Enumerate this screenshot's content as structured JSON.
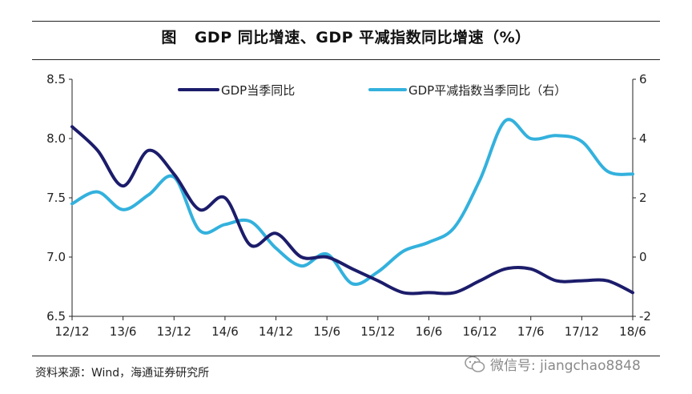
{
  "title": {
    "fig_label": "图",
    "text": "GDP 同比增速、GDP 平减指数同比增速（%）"
  },
  "source": "资料来源：Wind，海通证券研究所",
  "watermark": "微信号: jiangchao8848",
  "colors": {
    "gdp": "#1c1c6b",
    "deflator": "#33b1dd",
    "axis": "#222222"
  },
  "chart_data": {
    "type": "line",
    "x": [
      "12/12",
      "13/3",
      "13/6",
      "13/9",
      "13/12",
      "14/3",
      "14/6",
      "14/9",
      "14/12",
      "15/3",
      "15/6",
      "15/9",
      "15/12",
      "16/3",
      "16/6",
      "16/9",
      "16/12",
      "17/3",
      "17/6",
      "17/9",
      "17/12",
      "18/3",
      "18/6"
    ],
    "x_ticks": [
      "12/12",
      "13/6",
      "13/12",
      "14/6",
      "14/12",
      "15/6",
      "15/12",
      "16/6",
      "16/12",
      "17/6",
      "17/12",
      "18/6"
    ],
    "series": [
      {
        "name": "GDP当季同比",
        "axis": "left",
        "values": [
          8.1,
          7.9,
          7.6,
          7.9,
          7.7,
          7.4,
          7.5,
          7.1,
          7.2,
          7.0,
          7.0,
          6.9,
          6.8,
          6.7,
          6.7,
          6.7,
          6.8,
          6.9,
          6.9,
          6.8,
          6.8,
          6.8,
          6.7
        ]
      },
      {
        "name": "GDP平减指数当季同比（右）",
        "axis": "right",
        "values": [
          1.8,
          2.2,
          1.6,
          2.1,
          2.7,
          0.9,
          1.1,
          1.2,
          0.3,
          -0.3,
          0.1,
          -0.9,
          -0.5,
          0.2,
          0.5,
          1.0,
          2.6,
          4.6,
          4.0,
          4.1,
          3.9,
          2.9,
          2.8
        ]
      }
    ],
    "y_left": {
      "lim": [
        6.5,
        8.5
      ],
      "ticks": [
        "6.5",
        "7.0",
        "7.5",
        "8.0",
        "8.5"
      ]
    },
    "y_right": {
      "lim": [
        -2,
        6
      ],
      "ticks": [
        "-2",
        "0",
        "2",
        "4",
        "6"
      ]
    },
    "legend_position": "top",
    "grid": false
  }
}
